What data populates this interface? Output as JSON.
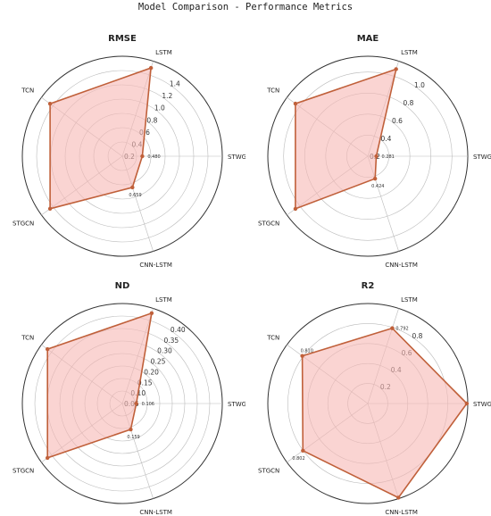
{
  "title": "Model Comparison - Performance Metrics",
  "style": {
    "line_color": "#c0603a",
    "fill_color": "#f6b8b4",
    "grid_color": "#bbbbbb"
  },
  "chart_data": [
    {
      "type": "radar",
      "title": "RMSE",
      "axes": [
        "STWGAFN",
        "LSTM",
        "TCN",
        "STGCN",
        "CNN-LSTM"
      ],
      "values": [
        0.48,
        1.5,
        1.45,
        1.45,
        0.659
      ],
      "point_labels": [
        "0.480",
        "",
        "",
        "",
        "0.659"
      ],
      "rticks": [
        "0.2",
        "0.4",
        "0.6",
        "0.8",
        "1.0",
        "1.2",
        "1.4"
      ],
      "rtick_values": [
        0.2,
        0.4,
        0.6,
        0.8,
        1.0,
        1.2,
        1.4
      ],
      "rmax": 1.6,
      "rmin": 0.2
    },
    {
      "type": "radar",
      "title": "MAE",
      "axes": [
        "STWGAFN",
        "LSTM",
        "TCN",
        "STGCN",
        "CNN-LSTM"
      ],
      "values": [
        0.281,
        1.07,
        1.05,
        1.05,
        0.424
      ],
      "point_labels": [
        "0.281",
        "",
        "",
        "",
        "0.424"
      ],
      "rticks": [
        "0.2",
        "0.4",
        "0.6",
        "0.8",
        "1.0"
      ],
      "rtick_values": [
        0.2,
        0.4,
        0.6,
        0.8,
        1.0
      ],
      "rmax": 1.15,
      "rmin": 0.2
    },
    {
      "type": "radar",
      "title": "ND",
      "axes": [
        "STWGAFN",
        "LSTM",
        "TCN",
        "STGCN",
        "CNN-LSTM"
      ],
      "values": [
        0.106,
        0.43,
        0.42,
        0.42,
        0.159
      ],
      "point_labels": [
        "0.106",
        "",
        "",
        "",
        "0.159"
      ],
      "rticks": [
        "0.05",
        "0.10",
        "0.15",
        "0.20",
        "0.25",
        "0.30",
        "0.35",
        "0.40"
      ],
      "rtick_values": [
        0.05,
        0.1,
        0.15,
        0.2,
        0.25,
        0.3,
        0.35,
        0.4
      ],
      "rmax": 0.45,
      "rmin": 0.05
    },
    {
      "type": "radar",
      "title": "R2",
      "axes": [
        "STWGAFN",
        "LSTM",
        "TCN",
        "STGCN",
        "CNN-LSTM"
      ],
      "values": [
        0.99,
        0.792,
        0.81,
        0.802,
        0.99
      ],
      "point_labels": [
        "",
        "0.792",
        "0.810",
        "0.802",
        ""
      ],
      "rticks": [
        "0.2",
        "0.4",
        "0.6",
        "0.8"
      ],
      "rtick_values": [
        0.2,
        0.4,
        0.6,
        0.8
      ],
      "rmax": 1.0,
      "rmin": 0.0
    }
  ]
}
